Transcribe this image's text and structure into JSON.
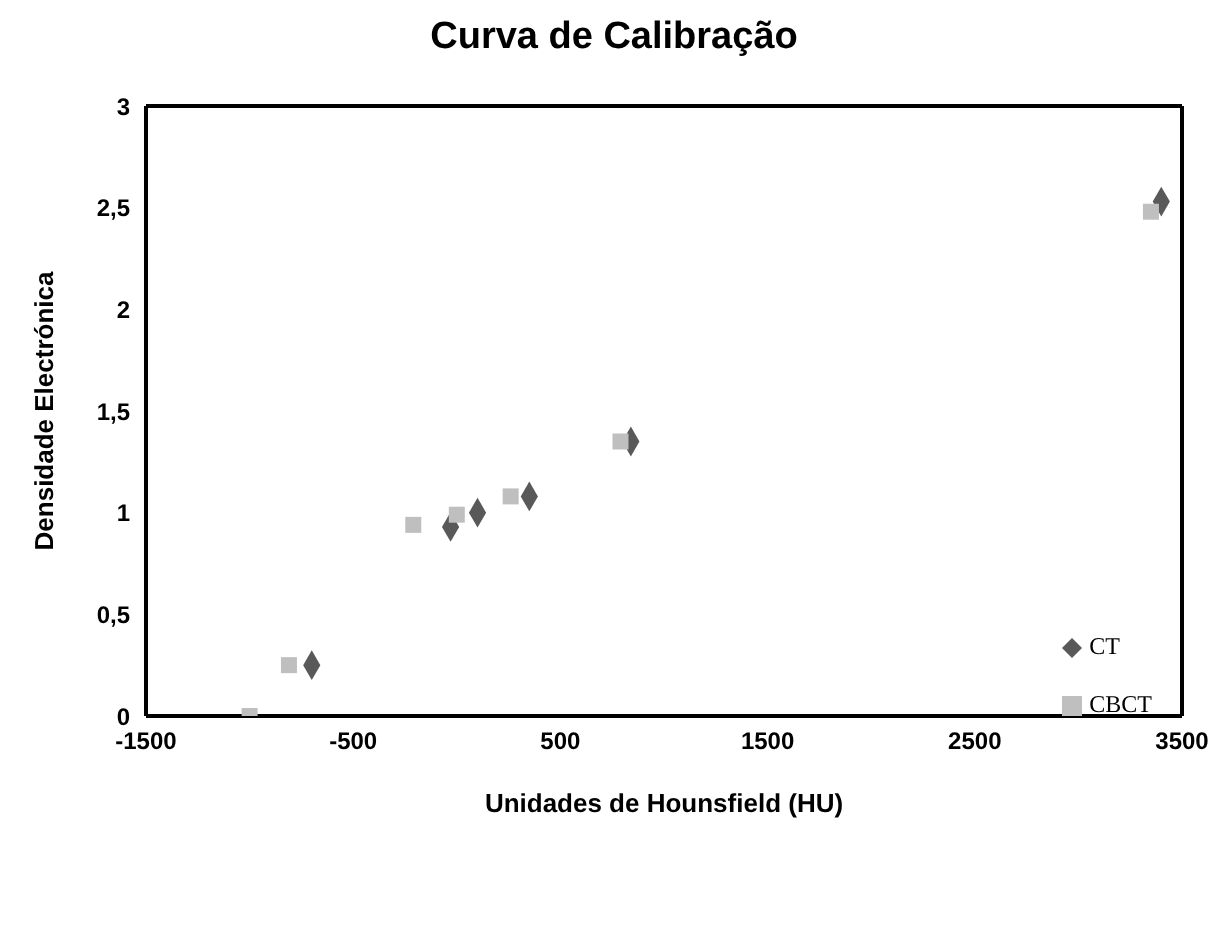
{
  "chart_data": {
    "type": "scatter",
    "title": "Curva de Calibração",
    "xlabel": "Unidades de Hounsfield (HU)",
    "ylabel": "Densidade Electrónica",
    "series": [
      {
        "name": "CT",
        "color": "#595959",
        "marker": "diamond",
        "x": [
          -700,
          -30,
          100,
          350,
          840,
          3400
        ],
        "values": [
          0.25,
          0.93,
          1.0,
          1.08,
          1.35,
          2.53
        ]
      },
      {
        "name": "CBCT",
        "color": "#bfbfbf",
        "marker": "square",
        "x": [
          -1000,
          -810,
          -210,
          0,
          260,
          790,
          3350
        ],
        "values": [
          0,
          0.25,
          0.94,
          0.99,
          1.08,
          1.35,
          2.48
        ]
      }
    ],
    "xlim": [
      -1500,
      3500
    ],
    "xticks": [
      -1500,
      -500,
      500,
      1500,
      2500,
      3500
    ],
    "ylim": [
      0,
      3
    ],
    "yticks": [
      0,
      {
        "value": 0.5,
        "label": "0,5"
      },
      1,
      {
        "value": 1.5,
        "label": "1,5"
      },
      2,
      {
        "value": 2.5,
        "label": "2,5"
      },
      3
    ],
    "legend": "bottom right"
  }
}
